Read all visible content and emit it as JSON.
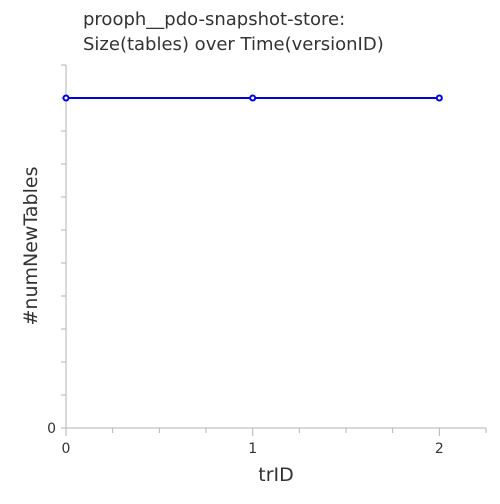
{
  "chart_data": {
    "type": "line",
    "title_lines": [
      "prooph__pdo-snapshot-store:",
      "Size(tables) over Time(versionID)"
    ],
    "xlabel": "trID",
    "ylabel": "#numNewTables",
    "x_ticks": [
      "0",
      "1",
      "2"
    ],
    "y_ticks": [
      "0"
    ],
    "xlim": [
      0,
      2.25
    ],
    "ylim": [
      0,
      1.1
    ],
    "grid": false,
    "series": [
      {
        "x": [
          0,
          1,
          2
        ],
        "y": [
          1,
          1,
          1
        ],
        "color": "#0000dd"
      }
    ]
  }
}
